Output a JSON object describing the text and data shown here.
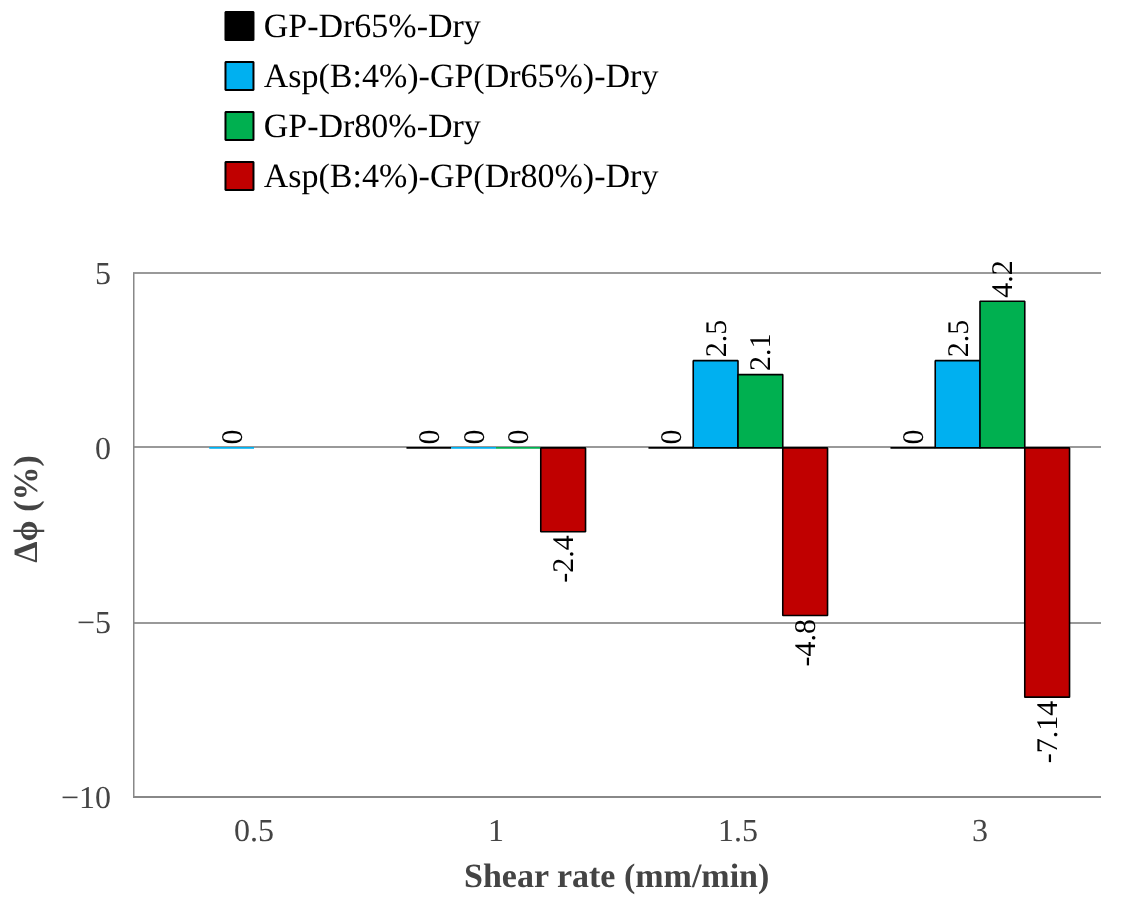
{
  "chart_data": {
    "type": "bar",
    "xlabel": "Shear rate (mm/min)",
    "ylabel": "Δϕ (%)",
    "categories": [
      "0.5",
      "1",
      "1.5",
      "3"
    ],
    "series": [
      {
        "name": "GP-Dr65%-Dry",
        "color": "#000000",
        "values": [
          null,
          0,
          0,
          0
        ]
      },
      {
        "name": "Asp(B:4%)-GP(Dr65%)-Dry",
        "color": "#00b0f0",
        "values": [
          0,
          0,
          2.5,
          2.5
        ]
      },
      {
        "name": "GP-Dr80%-Dry",
        "color": "#00b050",
        "values": [
          null,
          0,
          2.1,
          4.2
        ]
      },
      {
        "name": "Asp(B:4%)-GP(Dr80%)-Dry",
        "color": "#c00000",
        "values": [
          null,
          -2.4,
          -4.8,
          -7.14
        ]
      }
    ],
    "ylim": [
      -10,
      5
    ],
    "yticks": [
      -10,
      -5,
      0,
      5
    ],
    "grid": "y",
    "legend": "top",
    "data_labels": true
  }
}
